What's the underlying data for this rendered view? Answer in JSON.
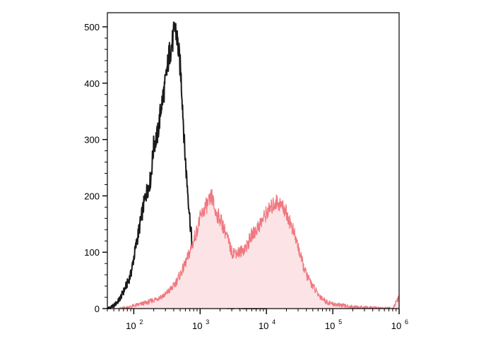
{
  "chart_data": {
    "type": "area",
    "title": "",
    "xlabel": "",
    "ylabel": "",
    "x_scale": "log",
    "xlim": [
      40,
      1000000
    ],
    "ylim": [
      0,
      500
    ],
    "x_ticks": [
      {
        "value": 100,
        "base": "10",
        "exp": "2"
      },
      {
        "value": 1000,
        "base": "10",
        "exp": "3"
      },
      {
        "value": 10000,
        "base": "10",
        "exp": "4"
      },
      {
        "value": 100000,
        "base": "10",
        "exp": "5"
      },
      {
        "value": 1000000,
        "base": "10",
        "exp": "6"
      }
    ],
    "y_ticks": [
      "0",
      "100",
      "200",
      "300",
      "400",
      "500"
    ],
    "grid": false,
    "legend": "none",
    "series": [
      {
        "style": "line",
        "color": "#1a1a1a",
        "x": [
          40,
          50,
          60,
          70,
          80,
          90,
          100,
          120,
          150,
          180,
          200,
          230,
          260,
          300,
          340,
          380,
          420,
          450,
          480,
          510,
          540,
          580,
          620,
          660,
          700,
          750,
          800,
          850,
          900,
          950,
          1000,
          1100,
          1300,
          1500,
          2000,
          3000,
          5000,
          10000
        ],
        "y": [
          0,
          5,
          15,
          30,
          45,
          60,
          90,
          140,
          200,
          230,
          290,
          310,
          360,
          400,
          450,
          470,
          500,
          480,
          450,
          420,
          370,
          290,
          240,
          200,
          160,
          120,
          80,
          60,
          40,
          20,
          15,
          10,
          5,
          5,
          3,
          2,
          1,
          0
        ]
      },
      {
        "style": "filled",
        "color": "#f07880",
        "fill": "#fce4e6",
        "x": [
          60,
          80,
          100,
          150,
          200,
          300,
          400,
          500,
          600,
          700,
          800,
          900,
          1000,
          1200,
          1400,
          1500,
          1700,
          2000,
          2500,
          3000,
          3500,
          4000,
          5000,
          6000,
          7000,
          8000,
          9000,
          10000,
          12000,
          14000,
          16000,
          18000,
          20000,
          25000,
          30000,
          35000,
          40000,
          50000,
          60000,
          80000,
          100000,
          150000,
          200000,
          300000,
          500000,
          800000,
          1000000
        ],
        "y": [
          0,
          2,
          5,
          10,
          15,
          25,
          40,
          60,
          80,
          100,
          120,
          140,
          160,
          180,
          190,
          200,
          170,
          160,
          130,
          100,
          100,
          100,
          110,
          130,
          140,
          150,
          160,
          170,
          180,
          190,
          185,
          180,
          170,
          140,
          110,
          80,
          60,
          40,
          25,
          12,
          8,
          5,
          3,
          2,
          1,
          0,
          20
        ]
      }
    ]
  }
}
